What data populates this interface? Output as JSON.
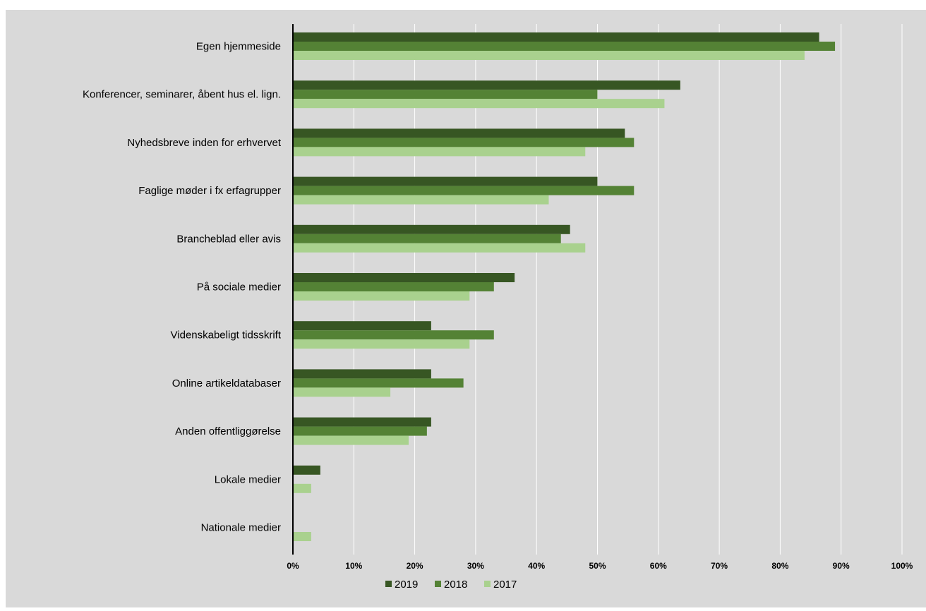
{
  "chart_data": {
    "type": "bar",
    "orientation": "horizontal",
    "categories": [
      "Egen hjemmeside",
      "Konferencer, seminarer, åbent hus el. lign.",
      "Nyhedsbreve inden for erhvervet",
      "Faglige møder i fx erfagrupper",
      "Brancheblad eller avis",
      "På sociale medier",
      "Videnskabeligt tidsskrift",
      "Online artikeldatabaser",
      "Anden offentliggørelse",
      "Lokale medier",
      "Nationale medier"
    ],
    "series": [
      {
        "name": "2019",
        "color": "#375623",
        "values": [
          86.4,
          63.6,
          54.5,
          50.0,
          45.5,
          36.4,
          22.7,
          22.7,
          22.7,
          4.5,
          0
        ]
      },
      {
        "name": "2018",
        "color": "#548235",
        "values": [
          89.0,
          50.0,
          56.0,
          56.0,
          44.0,
          33.0,
          33.0,
          28.0,
          22.0,
          0,
          0
        ]
      },
      {
        "name": "2017",
        "color": "#A9D18E",
        "values": [
          84.0,
          61.0,
          48.0,
          42.0,
          48.0,
          29.0,
          29.0,
          16.0,
          19.0,
          3.0,
          3.0
        ]
      }
    ],
    "xlim": [
      0,
      100
    ],
    "x_ticks": [
      0,
      10,
      20,
      30,
      40,
      50,
      60,
      70,
      80,
      90,
      100
    ],
    "x_tick_suffix": "%",
    "grid": true,
    "legend_position": "bottom-center",
    "background": "#D9D9D9",
    "gridline_color": "#FFFFFF"
  }
}
